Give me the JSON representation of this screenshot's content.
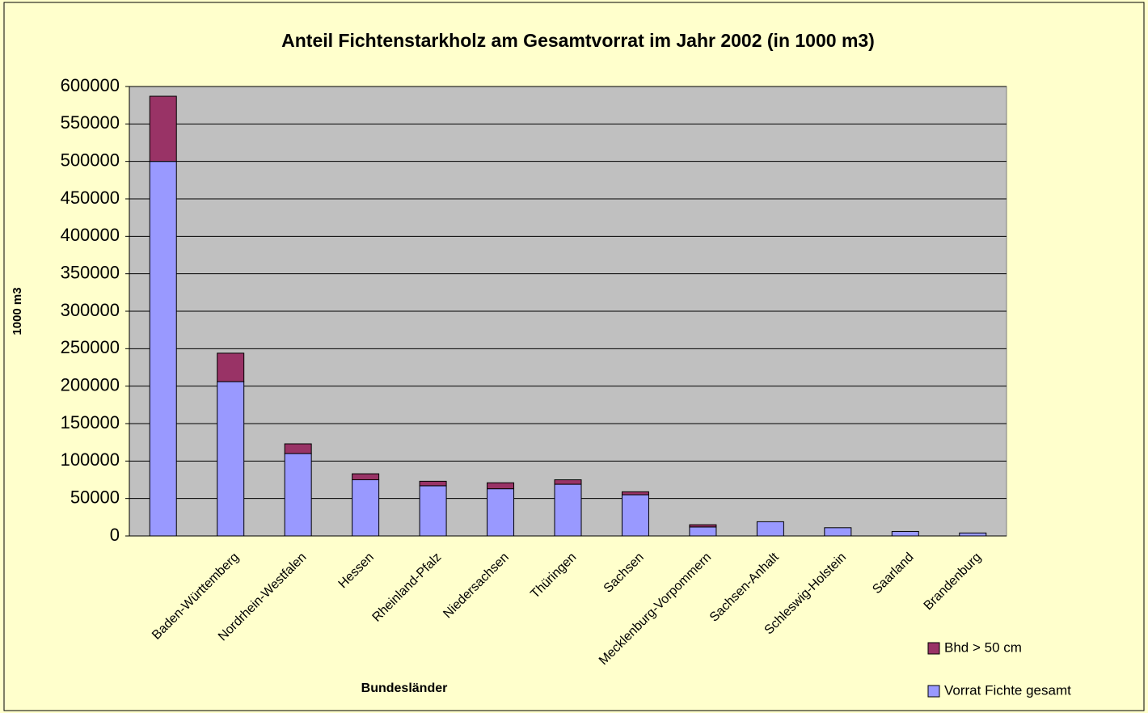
{
  "chart_data": {
    "type": "stacked_bar",
    "title": "Anteil Fichtenstarkholz am Gesamtvorrat im Jahr 2002 (in 1000 m3)",
    "y_label": "1000 m3",
    "x_label": "Bundesländer",
    "categories": [
      null,
      "Baden-Württemberg",
      "Nordrhein-Westfalen",
      "Hessen",
      "Rheinland-Pfalz",
      "Niedersachsen",
      "Thüringen",
      "Sachsen",
      "Mecklenburg-Vorpommern",
      "Sachsen-Anhalt",
      "Schleswig-Holstein",
      "Saarland",
      "Brandenburg"
    ],
    "series": [
      {
        "name": "Vorrat Fichte gesamt",
        "color": "#9999ff",
        "values": [
          500000,
          206000,
          110000,
          75000,
          67000,
          63000,
          69000,
          55000,
          12000,
          19000,
          11000,
          6000,
          4000
        ]
      },
      {
        "name": "Bhd > 50 cm",
        "color": "#993366",
        "values": [
          87000,
          38000,
          13000,
          8000,
          6000,
          8000,
          6000,
          4000,
          3000,
          0,
          0,
          0,
          0
        ]
      }
    ],
    "ylim": [
      0,
      600000
    ],
    "yticks": [
      0,
      50000,
      100000,
      150000,
      200000,
      250000,
      300000,
      350000,
      400000,
      450000,
      500000,
      550000,
      600000
    ],
    "grid": true,
    "legend": "bottom-right"
  }
}
